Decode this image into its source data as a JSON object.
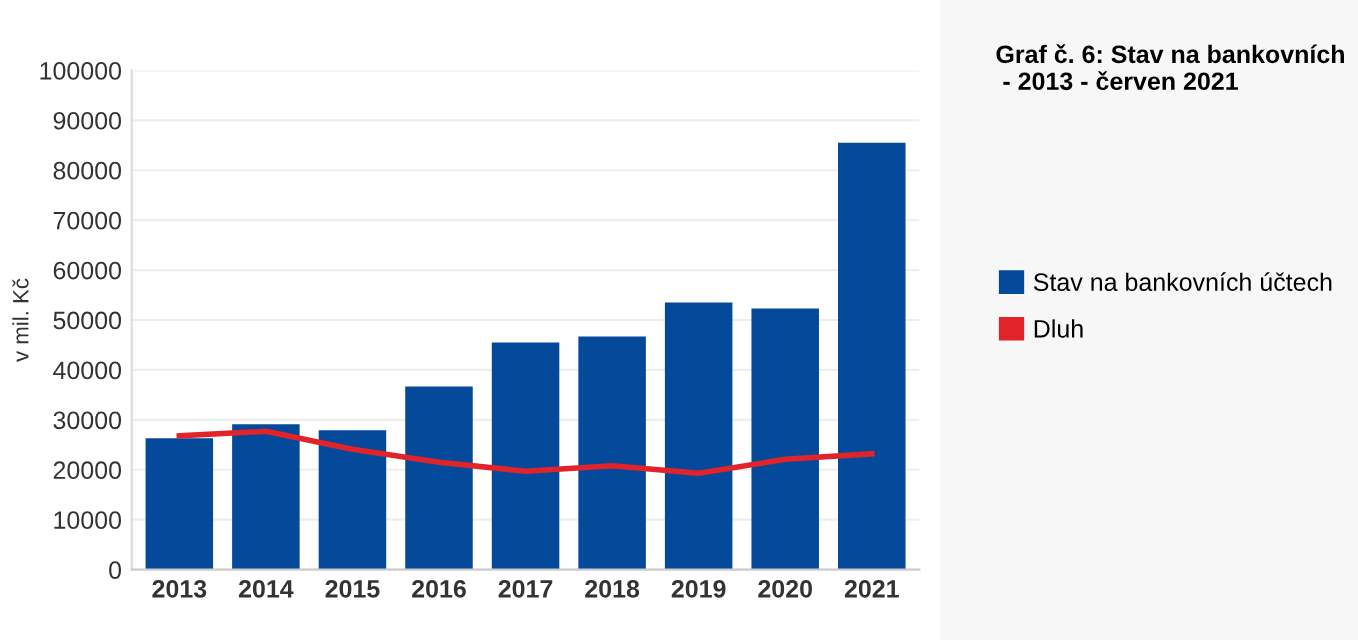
{
  "chart_data": {
    "type": "bar",
    "title": "Graf č. 6: Stav na bankovních\n - 2013 - červen 2021",
    "ylabel": "v mil. Kč",
    "categories": [
      "2013",
      "2014",
      "2015",
      "2016",
      "2017",
      "2018",
      "2019",
      "2020",
      "2021"
    ],
    "series": [
      {
        "name": "Stav na bankovních účtech",
        "color": "#054a9a",
        "values": [
          26300,
          29100,
          27900,
          36700,
          45500,
          46700,
          53500,
          52300,
          85500
        ]
      },
      {
        "name": "Dluh",
        "type": "line",
        "color": "#e0242a",
        "values": [
          26800,
          27700,
          24100,
          21500,
          19700,
          20800,
          19300,
          22100,
          23200
        ]
      }
    ],
    "ylim": [
      0,
      100000
    ],
    "yticks": [
      0,
      10000,
      20000,
      30000,
      40000,
      50000,
      60000,
      70000,
      80000,
      90000,
      100000
    ],
    "grid": "y",
    "legend": "right"
  }
}
